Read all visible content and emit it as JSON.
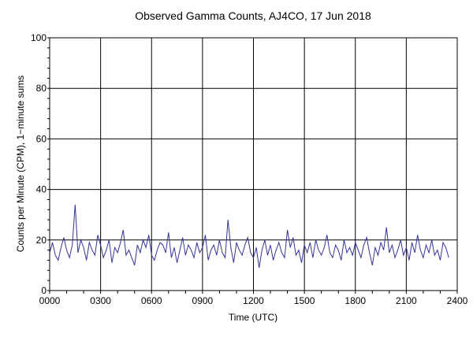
{
  "chart_data": {
    "type": "line",
    "title": "Observed Gamma Counts, AJ4CO, 17 Jun 2018",
    "xlabel": "Time (UTC)",
    "ylabel": "Counts per Minute (CPM), 1−minute sums",
    "xlim": [
      0,
      1440
    ],
    "ylim": [
      0,
      100
    ],
    "x_unit": "minutes of day (UTC)",
    "x_ticks": [
      {
        "value": 0,
        "label": "0000"
      },
      {
        "value": 180,
        "label": "0300"
      },
      {
        "value": 360,
        "label": "0600"
      },
      {
        "value": 540,
        "label": "0900"
      },
      {
        "value": 720,
        "label": "1200"
      },
      {
        "value": 900,
        "label": "1500"
      },
      {
        "value": 1080,
        "label": "1800"
      },
      {
        "value": 1260,
        "label": "2100"
      },
      {
        "value": 1440,
        "label": "2400"
      }
    ],
    "y_ticks": [
      0,
      20,
      40,
      60,
      80,
      100
    ],
    "grid": true,
    "series_color": "#333399",
    "series": [
      {
        "sample_interval_min": 10,
        "x_start": 0,
        "values": [
          15,
          19,
          14,
          12,
          17,
          21,
          16,
          13,
          18,
          34,
          15,
          20,
          17,
          12,
          19,
          16,
          14,
          22,
          18,
          13,
          16,
          20,
          11,
          17,
          15,
          19,
          24,
          14,
          16,
          13,
          10,
          18,
          15,
          20,
          17,
          22,
          14,
          12,
          16,
          19,
          18,
          15,
          23,
          13,
          17,
          11,
          16,
          21,
          14,
          18,
          16,
          13,
          19,
          15,
          17,
          22,
          12,
          16,
          18,
          14,
          20,
          15,
          13,
          28,
          17,
          11,
          19,
          16,
          14,
          18,
          21,
          15,
          13,
          17,
          9,
          16,
          20,
          14,
          18,
          12,
          16,
          19,
          15,
          13,
          24,
          17,
          21,
          14,
          16,
          11,
          18,
          15,
          19,
          13,
          20,
          16,
          14,
          17,
          22,
          15,
          13,
          18,
          16,
          12,
          20,
          15,
          17,
          14,
          19,
          16,
          13,
          18,
          21,
          15,
          10,
          17,
          14,
          19,
          16,
          25,
          15,
          18,
          13,
          16,
          20,
          14,
          17,
          12,
          19,
          15,
          22,
          16,
          13,
          18,
          15,
          20,
          14,
          16,
          12,
          19,
          17,
          13
        ]
      }
    ]
  }
}
